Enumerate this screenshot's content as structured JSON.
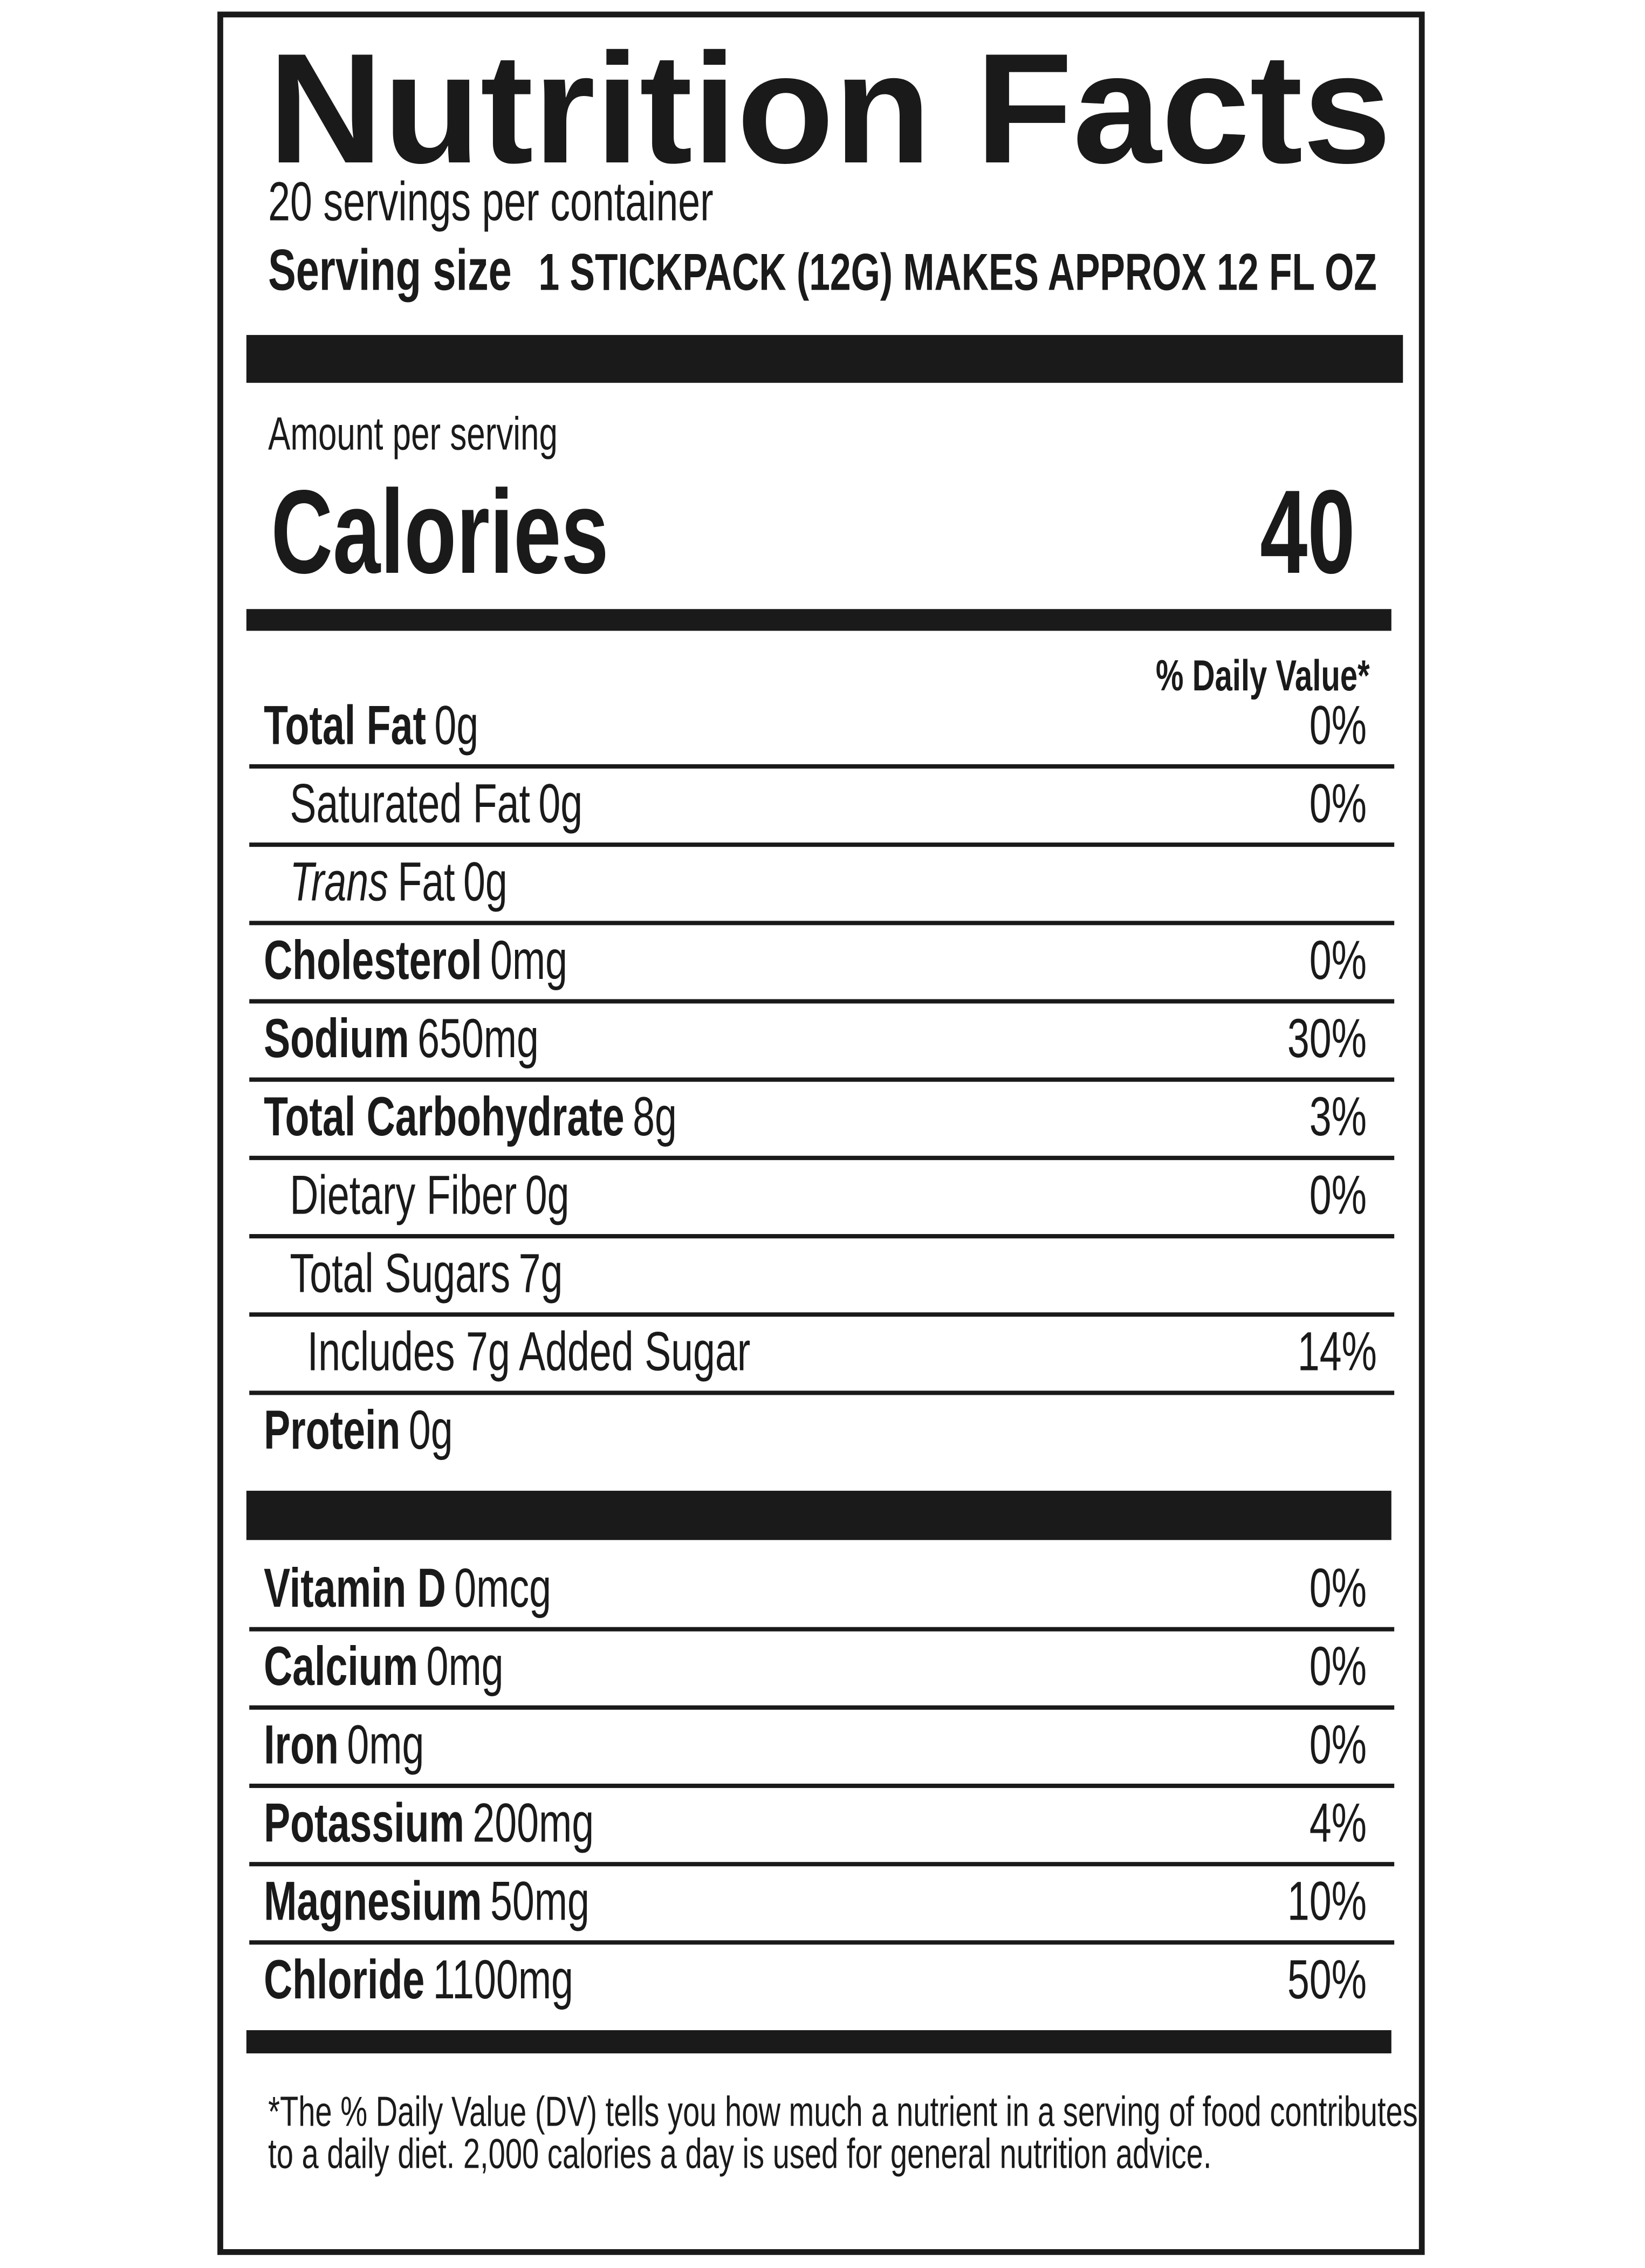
{
  "header": {
    "title": "Nutrition Facts",
    "servings": "20 servings per container",
    "serving_size_label": "Serving size",
    "serving_size": "1 STICKPACK (12G) MAKES APPROX 12 FL OZ"
  },
  "calories": {
    "amount_label": "Amount per serving",
    "label": "Calories",
    "value": "40"
  },
  "daily_value_header": "% Daily Value*",
  "nutrients": [
    {
      "name": "Total Fat",
      "amount": "0g",
      "dv": "0%"
    },
    {
      "name": "Saturated Fat",
      "amount": "0g",
      "dv": "0%"
    },
    {
      "name_italic": "Trans",
      "name": "Fat",
      "amount": "0g"
    },
    {
      "name": "Cholesterol",
      "amount": "0mg",
      "dv": "0%"
    },
    {
      "name": "Sodium",
      "amount": "650mg",
      "dv": "30%"
    },
    {
      "name": "Total Carbohydrate",
      "amount": "8g",
      "dv": "3%"
    },
    {
      "name": "Dietary Fiber",
      "amount": "0g",
      "dv": "0%"
    },
    {
      "name": "Total Sugars",
      "amount": "7g"
    },
    {
      "name": "Includes 7g Added Sugar",
      "dv": "14%"
    },
    {
      "name": "Protein",
      "amount": "0g"
    }
  ],
  "vitamins": [
    {
      "name": "Vitamin D",
      "amount": "0mcg",
      "dv": "0%"
    },
    {
      "name": "Calcium",
      "amount": "0mg",
      "dv": "0%"
    },
    {
      "name": "Iron",
      "amount": "0mg",
      "dv": "0%"
    },
    {
      "name": "Potassium",
      "amount": "200mg",
      "dv": "4%"
    },
    {
      "name": "Magnesium",
      "amount": "50mg",
      "dv": "10%"
    },
    {
      "name": "Chloride",
      "amount": "1100mg",
      "dv": "50%"
    }
  ],
  "footnote": [
    "*The % Daily Value (DV) tells you how much a nutrient in a serving of food contributes",
    "to a daily diet. 2,000 calories a day is used for general nutrition advice."
  ]
}
